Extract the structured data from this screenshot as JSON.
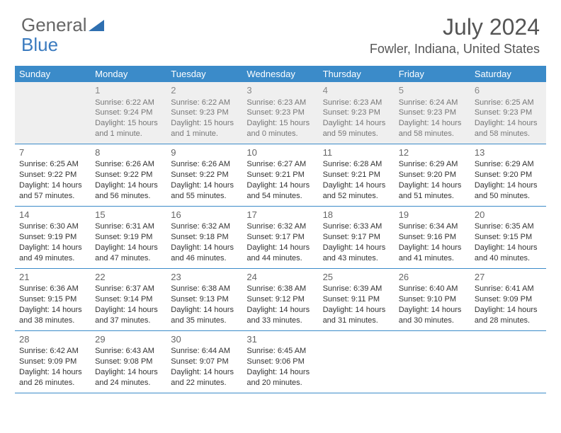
{
  "logo": {
    "text1": "General",
    "text2": "Blue"
  },
  "title": "July 2024",
  "location": "Fowler, Indiana, United States",
  "colors": {
    "header_bg": "#3b8bc9",
    "header_text": "#ffffff",
    "border": "#3b8bc9",
    "empty_bg": "#efefef",
    "text": "#333333",
    "title_text": "#555555"
  },
  "weekdays": [
    "Sunday",
    "Monday",
    "Tuesday",
    "Wednesday",
    "Thursday",
    "Friday",
    "Saturday"
  ],
  "weeks": [
    [
      {
        "n": "",
        "empty": true
      },
      {
        "n": "1",
        "empty": true,
        "l1": "Sunrise: 6:22 AM",
        "l2": "Sunset: 9:24 PM",
        "l3": "Daylight: 15 hours",
        "l4": "and 1 minute."
      },
      {
        "n": "2",
        "empty": true,
        "l1": "Sunrise: 6:22 AM",
        "l2": "Sunset: 9:23 PM",
        "l3": "Daylight: 15 hours",
        "l4": "and 1 minute."
      },
      {
        "n": "3",
        "empty": true,
        "l1": "Sunrise: 6:23 AM",
        "l2": "Sunset: 9:23 PM",
        "l3": "Daylight: 15 hours",
        "l4": "and 0 minutes."
      },
      {
        "n": "4",
        "empty": true,
        "l1": "Sunrise: 6:23 AM",
        "l2": "Sunset: 9:23 PM",
        "l3": "Daylight: 14 hours",
        "l4": "and 59 minutes."
      },
      {
        "n": "5",
        "empty": true,
        "l1": "Sunrise: 6:24 AM",
        "l2": "Sunset: 9:23 PM",
        "l3": "Daylight: 14 hours",
        "l4": "and 58 minutes."
      },
      {
        "n": "6",
        "empty": true,
        "l1": "Sunrise: 6:25 AM",
        "l2": "Sunset: 9:23 PM",
        "l3": "Daylight: 14 hours",
        "l4": "and 58 minutes."
      }
    ],
    [
      {
        "n": "7",
        "l1": "Sunrise: 6:25 AM",
        "l2": "Sunset: 9:22 PM",
        "l3": "Daylight: 14 hours",
        "l4": "and 57 minutes."
      },
      {
        "n": "8",
        "l1": "Sunrise: 6:26 AM",
        "l2": "Sunset: 9:22 PM",
        "l3": "Daylight: 14 hours",
        "l4": "and 56 minutes."
      },
      {
        "n": "9",
        "l1": "Sunrise: 6:26 AM",
        "l2": "Sunset: 9:22 PM",
        "l3": "Daylight: 14 hours",
        "l4": "and 55 minutes."
      },
      {
        "n": "10",
        "l1": "Sunrise: 6:27 AM",
        "l2": "Sunset: 9:21 PM",
        "l3": "Daylight: 14 hours",
        "l4": "and 54 minutes."
      },
      {
        "n": "11",
        "l1": "Sunrise: 6:28 AM",
        "l2": "Sunset: 9:21 PM",
        "l3": "Daylight: 14 hours",
        "l4": "and 52 minutes."
      },
      {
        "n": "12",
        "l1": "Sunrise: 6:29 AM",
        "l2": "Sunset: 9:20 PM",
        "l3": "Daylight: 14 hours",
        "l4": "and 51 minutes."
      },
      {
        "n": "13",
        "l1": "Sunrise: 6:29 AM",
        "l2": "Sunset: 9:20 PM",
        "l3": "Daylight: 14 hours",
        "l4": "and 50 minutes."
      }
    ],
    [
      {
        "n": "14",
        "l1": "Sunrise: 6:30 AM",
        "l2": "Sunset: 9:19 PM",
        "l3": "Daylight: 14 hours",
        "l4": "and 49 minutes."
      },
      {
        "n": "15",
        "l1": "Sunrise: 6:31 AM",
        "l2": "Sunset: 9:19 PM",
        "l3": "Daylight: 14 hours",
        "l4": "and 47 minutes."
      },
      {
        "n": "16",
        "l1": "Sunrise: 6:32 AM",
        "l2": "Sunset: 9:18 PM",
        "l3": "Daylight: 14 hours",
        "l4": "and 46 minutes."
      },
      {
        "n": "17",
        "l1": "Sunrise: 6:32 AM",
        "l2": "Sunset: 9:17 PM",
        "l3": "Daylight: 14 hours",
        "l4": "and 44 minutes."
      },
      {
        "n": "18",
        "l1": "Sunrise: 6:33 AM",
        "l2": "Sunset: 9:17 PM",
        "l3": "Daylight: 14 hours",
        "l4": "and 43 minutes."
      },
      {
        "n": "19",
        "l1": "Sunrise: 6:34 AM",
        "l2": "Sunset: 9:16 PM",
        "l3": "Daylight: 14 hours",
        "l4": "and 41 minutes."
      },
      {
        "n": "20",
        "l1": "Sunrise: 6:35 AM",
        "l2": "Sunset: 9:15 PM",
        "l3": "Daylight: 14 hours",
        "l4": "and 40 minutes."
      }
    ],
    [
      {
        "n": "21",
        "l1": "Sunrise: 6:36 AM",
        "l2": "Sunset: 9:15 PM",
        "l3": "Daylight: 14 hours",
        "l4": "and 38 minutes."
      },
      {
        "n": "22",
        "l1": "Sunrise: 6:37 AM",
        "l2": "Sunset: 9:14 PM",
        "l3": "Daylight: 14 hours",
        "l4": "and 37 minutes."
      },
      {
        "n": "23",
        "l1": "Sunrise: 6:38 AM",
        "l2": "Sunset: 9:13 PM",
        "l3": "Daylight: 14 hours",
        "l4": "and 35 minutes."
      },
      {
        "n": "24",
        "l1": "Sunrise: 6:38 AM",
        "l2": "Sunset: 9:12 PM",
        "l3": "Daylight: 14 hours",
        "l4": "and 33 minutes."
      },
      {
        "n": "25",
        "l1": "Sunrise: 6:39 AM",
        "l2": "Sunset: 9:11 PM",
        "l3": "Daylight: 14 hours",
        "l4": "and 31 minutes."
      },
      {
        "n": "26",
        "l1": "Sunrise: 6:40 AM",
        "l2": "Sunset: 9:10 PM",
        "l3": "Daylight: 14 hours",
        "l4": "and 30 minutes."
      },
      {
        "n": "27",
        "l1": "Sunrise: 6:41 AM",
        "l2": "Sunset: 9:09 PM",
        "l3": "Daylight: 14 hours",
        "l4": "and 28 minutes."
      }
    ],
    [
      {
        "n": "28",
        "l1": "Sunrise: 6:42 AM",
        "l2": "Sunset: 9:09 PM",
        "l3": "Daylight: 14 hours",
        "l4": "and 26 minutes."
      },
      {
        "n": "29",
        "l1": "Sunrise: 6:43 AM",
        "l2": "Sunset: 9:08 PM",
        "l3": "Daylight: 14 hours",
        "l4": "and 24 minutes."
      },
      {
        "n": "30",
        "l1": "Sunrise: 6:44 AM",
        "l2": "Sunset: 9:07 PM",
        "l3": "Daylight: 14 hours",
        "l4": "and 22 minutes."
      },
      {
        "n": "31",
        "l1": "Sunrise: 6:45 AM",
        "l2": "Sunset: 9:06 PM",
        "l3": "Daylight: 14 hours",
        "l4": "and 20 minutes."
      },
      {
        "n": ""
      },
      {
        "n": ""
      },
      {
        "n": ""
      }
    ]
  ]
}
